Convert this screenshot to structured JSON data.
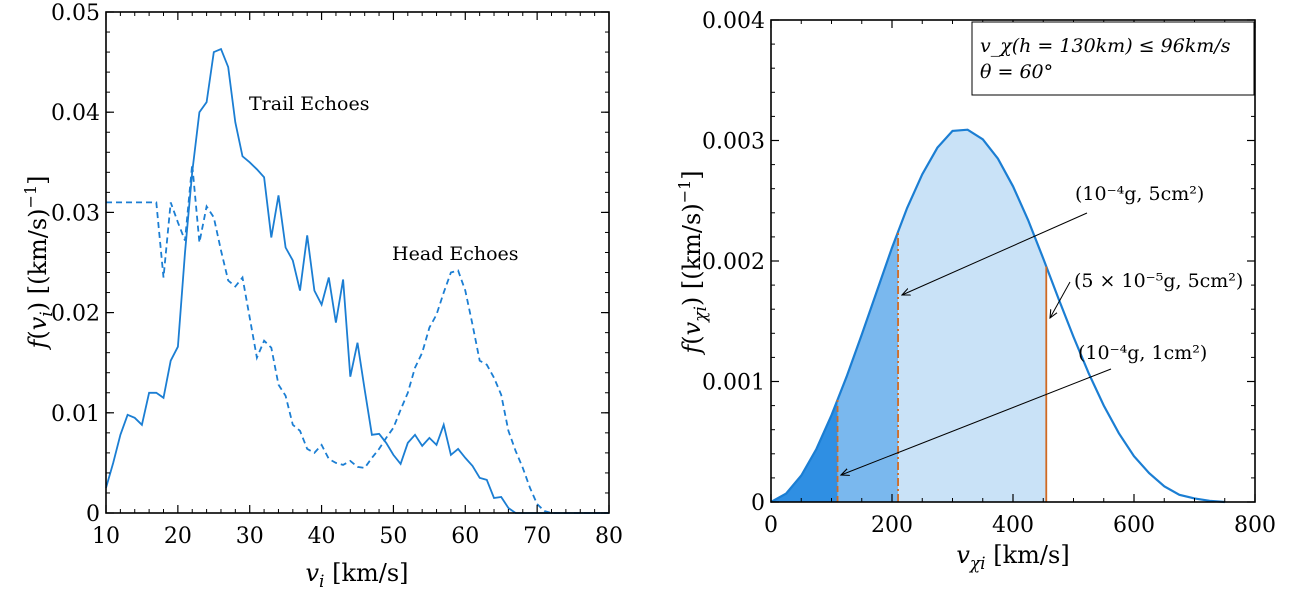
{
  "chart_data": [
    {
      "type": "line",
      "xlabel": "v_i [km/s]",
      "ylabel": "f(v_i) [(km/s)^-1]",
      "xlim": [
        10,
        80
      ],
      "ylim": [
        0,
        0.05
      ],
      "xticks": [
        "10",
        "20",
        "30",
        "40",
        "50",
        "60",
        "70",
        "80"
      ],
      "yticks": [
        "0",
        "0.01",
        "0.02",
        "0.03",
        "0.04",
        "0.05"
      ],
      "grid": false,
      "series": [
        {
          "name": "Trail Echoes",
          "style": "solid",
          "color": "#1b7ed3",
          "x": [
            10,
            11,
            12,
            13,
            14,
            15,
            16,
            17,
            18,
            19,
            20,
            21,
            22,
            23,
            24,
            25,
            26,
            27,
            28,
            29,
            30,
            31,
            32,
            33,
            34,
            35,
            36,
            37,
            38,
            39,
            40,
            41,
            42,
            43,
            44,
            45,
            46,
            47,
            48,
            49,
            50,
            51,
            52,
            53,
            54,
            55,
            56,
            57,
            58,
            59,
            60,
            61,
            62,
            63,
            64,
            65,
            66,
            67,
            68,
            69,
            70,
            71,
            72,
            73,
            74,
            75,
            76,
            77,
            78,
            79,
            80
          ],
          "y": [
            0.0025,
            0.005,
            0.0078,
            0.0098,
            0.0095,
            0.0088,
            0.012,
            0.012,
            0.0115,
            0.0152,
            0.0166,
            0.026,
            0.034,
            0.04,
            0.041,
            0.046,
            0.0463,
            0.0445,
            0.039,
            0.0356,
            0.035,
            0.0343,
            0.0335,
            0.0275,
            0.0317,
            0.0265,
            0.0252,
            0.0222,
            0.0277,
            0.0222,
            0.0208,
            0.0235,
            0.019,
            0.0233,
            0.0136,
            0.017,
            0.0123,
            0.0078,
            0.0079,
            0.007,
            0.0058,
            0.0049,
            0.007,
            0.0078,
            0.0067,
            0.0075,
            0.0068,
            0.0088,
            0.0058,
            0.0064,
            0.0055,
            0.0047,
            0.0035,
            0.0033,
            0.0015,
            0.0016,
            0.0005,
            0.0,
            0.0,
            0.0,
            0.0,
            0.0,
            0.0,
            0.0,
            0.0,
            0.0,
            0.0,
            0.0,
            0.0,
            0.0,
            0.0
          ]
        },
        {
          "name": "Head Echoes",
          "style": "dashed",
          "color": "#1b7ed3",
          "x": [
            10,
            11,
            12,
            13,
            14,
            15,
            16,
            17,
            18,
            19,
            20,
            21,
            22,
            23,
            24,
            25,
            26,
            27,
            28,
            29,
            30,
            31,
            32,
            33,
            34,
            35,
            36,
            37,
            38,
            39,
            40,
            41,
            42,
            43,
            44,
            45,
            46,
            47,
            48,
            49,
            50,
            51,
            52,
            53,
            54,
            55,
            56,
            57,
            58,
            59,
            60,
            61,
            62,
            63,
            64,
            65,
            66,
            67,
            68,
            69,
            70,
            71,
            72,
            73,
            74,
            75,
            76,
            77,
            78,
            79,
            80
          ],
          "y": [
            0.031,
            0.031,
            0.031,
            0.031,
            0.031,
            0.031,
            0.031,
            0.031,
            0.0235,
            0.031,
            0.029,
            0.0272,
            0.0348,
            0.027,
            0.0306,
            0.0295,
            0.0262,
            0.0232,
            0.0226,
            0.0235,
            0.0195,
            0.0155,
            0.0172,
            0.0165,
            0.0128,
            0.0117,
            0.0088,
            0.0082,
            0.0064,
            0.006,
            0.0068,
            0.0054,
            0.005,
            0.0048,
            0.0052,
            0.0046,
            0.0045,
            0.0055,
            0.0064,
            0.0075,
            0.0085,
            0.0103,
            0.012,
            0.0145,
            0.016,
            0.0185,
            0.0198,
            0.022,
            0.024,
            0.0242,
            0.0222,
            0.0188,
            0.0152,
            0.0148,
            0.0135,
            0.0118,
            0.0082,
            0.0062,
            0.0045,
            0.0025,
            0.0009,
            0.0002,
            0.0,
            0.0,
            0.0,
            0.0,
            0.0,
            0.0,
            0.0,
            0.0,
            0.0
          ]
        }
      ],
      "annotations": [
        {
          "text": "Trail Echoes",
          "x": 32,
          "y": 0.0407
        },
        {
          "text": "Head Echoes",
          "x": 56,
          "y": 0.0258
        }
      ]
    },
    {
      "type": "area",
      "xlabel": "v_χi [km/s]",
      "ylabel": "f(v_χi) [(km/s)^-1]",
      "xlim": [
        0,
        800
      ],
      "ylim": [
        0,
        0.004
      ],
      "xticks": [
        "0",
        "200",
        "400",
        "600",
        "800"
      ],
      "yticks": [
        "0",
        "0.001",
        "0.002",
        "0.003",
        "0.004"
      ],
      "grid": false,
      "series": [
        {
          "name": "",
          "color": "#1b7ed3",
          "x": [
            0,
            25,
            50,
            75,
            100,
            125,
            150,
            175,
            200,
            225,
            250,
            275,
            300,
            325,
            350,
            375,
            400,
            425,
            450,
            475,
            500,
            525,
            550,
            575,
            600,
            625,
            650,
            675,
            700,
            725,
            750
          ],
          "y": [
            0,
            7e-05,
            0.00022,
            0.00044,
            0.00072,
            0.00104,
            0.00139,
            0.00175,
            0.00211,
            0.00244,
            0.00272,
            0.00294,
            0.00308,
            0.00309,
            0.00301,
            0.00285,
            0.00262,
            0.00234,
            0.00202,
            0.00169,
            0.00137,
            0.00107,
            0.0008,
            0.00057,
            0.00038,
            0.00024,
            0.00013,
            6e-05,
            3e-05,
            1e-05,
            0
          ]
        }
      ],
      "shaded_regions": [
        {
          "from": 0,
          "to": 110,
          "color": "#2f8fe3"
        },
        {
          "from": 110,
          "to": 210,
          "color": "#7ab8ee"
        },
        {
          "from": 210,
          "to": 455,
          "color": "#c9e2f7"
        }
      ],
      "cutoffs": [
        {
          "x": 110,
          "style": "dashed",
          "label": "(10⁻⁴g, 1cm²)"
        },
        {
          "x": 210,
          "style": "dashdot",
          "label": "(10⁻⁴g, 5cm²)"
        },
        {
          "x": 455,
          "style": "solid",
          "label": "(5 × 10⁻⁵g, 5cm²)"
        }
      ],
      "legend_box": {
        "line1": "v_χ(h = 130km) ≤ 96km/s",
        "line2": "θ = 60°",
        "position": "top-right"
      }
    }
  ],
  "colors": {
    "line": "#1b7ed3",
    "cutoff": "#d06a22"
  }
}
